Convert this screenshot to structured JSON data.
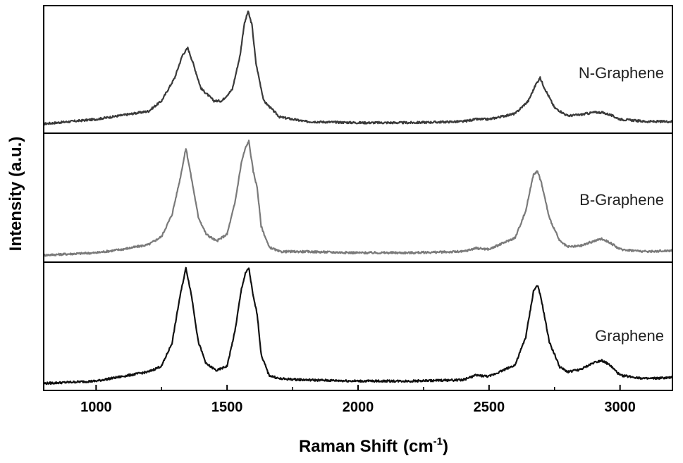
{
  "chart_data": {
    "type": "line",
    "xlabel": "Raman Shift",
    "xlabel_unit_base": "(cm",
    "xlabel_unit_exp": "-1",
    "xlabel_unit_close": ")",
    "ylabel": "Intensity (a.u.)",
    "xlim": [
      800,
      3200
    ],
    "x_ticks": [
      1000,
      1500,
      2000,
      2500,
      3000
    ],
    "x_tick_labels": [
      "1000",
      "1500",
      "2000",
      "2500",
      "3000"
    ],
    "layout": "stacked-panels",
    "series": [
      {
        "name": "N-Graphene",
        "color": "#3a3a3a",
        "x": [
          800,
          1000,
          1200,
          1250,
          1300,
          1330,
          1350,
          1370,
          1400,
          1450,
          1480,
          1520,
          1550,
          1565,
          1580,
          1595,
          1610,
          1640,
          1700,
          1800,
          2000,
          2200,
          2400,
          2450,
          2500,
          2600,
          2650,
          2680,
          2695,
          2710,
          2750,
          2800,
          2850,
          2900,
          2930,
          2960,
          3000,
          3100,
          3200
        ],
        "y": [
          0.02,
          0.06,
          0.13,
          0.22,
          0.42,
          0.62,
          0.68,
          0.55,
          0.33,
          0.22,
          0.22,
          0.32,
          0.62,
          0.88,
          1.0,
          0.88,
          0.55,
          0.22,
          0.08,
          0.04,
          0.03,
          0.03,
          0.04,
          0.06,
          0.06,
          0.11,
          0.22,
          0.37,
          0.42,
          0.34,
          0.16,
          0.09,
          0.1,
          0.12,
          0.12,
          0.1,
          0.06,
          0.04,
          0.04
        ]
      },
      {
        "name": "B-Graphene",
        "color": "#7a7a7a",
        "x": [
          800,
          1000,
          1100,
          1200,
          1250,
          1290,
          1320,
          1343,
          1365,
          1390,
          1420,
          1460,
          1500,
          1530,
          1555,
          1570,
          1583,
          1600,
          1615,
          1630,
          1660,
          1700,
          1800,
          2000,
          2200,
          2400,
          2450,
          2500,
          2600,
          2640,
          2670,
          2685,
          2700,
          2730,
          2770,
          2800,
          2850,
          2900,
          2930,
          2960,
          3000,
          3100,
          3200
        ],
        "y": [
          0.0,
          0.02,
          0.05,
          0.09,
          0.16,
          0.35,
          0.65,
          0.92,
          0.65,
          0.33,
          0.18,
          0.12,
          0.18,
          0.45,
          0.8,
          0.92,
          0.98,
          0.72,
          0.58,
          0.25,
          0.07,
          0.03,
          0.03,
          0.02,
          0.02,
          0.03,
          0.06,
          0.05,
          0.15,
          0.38,
          0.7,
          0.72,
          0.62,
          0.32,
          0.12,
          0.07,
          0.08,
          0.12,
          0.14,
          0.11,
          0.05,
          0.03,
          0.04
        ]
      },
      {
        "name": "Graphene",
        "color": "#111111",
        "x": [
          800,
          1000,
          1100,
          1200,
          1250,
          1290,
          1320,
          1343,
          1365,
          1390,
          1420,
          1460,
          1500,
          1530,
          1555,
          1570,
          1583,
          1600,
          1615,
          1630,
          1660,
          1700,
          1800,
          2000,
          2200,
          2400,
          2450,
          2500,
          2600,
          2640,
          2670,
          2685,
          2700,
          2730,
          2770,
          2800,
          2850,
          2900,
          2930,
          2960,
          3000,
          3100,
          3200
        ],
        "y": [
          0.0,
          0.02,
          0.06,
          0.1,
          0.15,
          0.35,
          0.75,
          1.0,
          0.75,
          0.36,
          0.17,
          0.11,
          0.15,
          0.45,
          0.82,
          0.95,
          1.0,
          0.75,
          0.6,
          0.25,
          0.07,
          0.04,
          0.03,
          0.02,
          0.02,
          0.03,
          0.07,
          0.06,
          0.16,
          0.4,
          0.8,
          0.85,
          0.72,
          0.36,
          0.14,
          0.1,
          0.12,
          0.18,
          0.2,
          0.16,
          0.07,
          0.04,
          0.05
        ]
      }
    ]
  }
}
